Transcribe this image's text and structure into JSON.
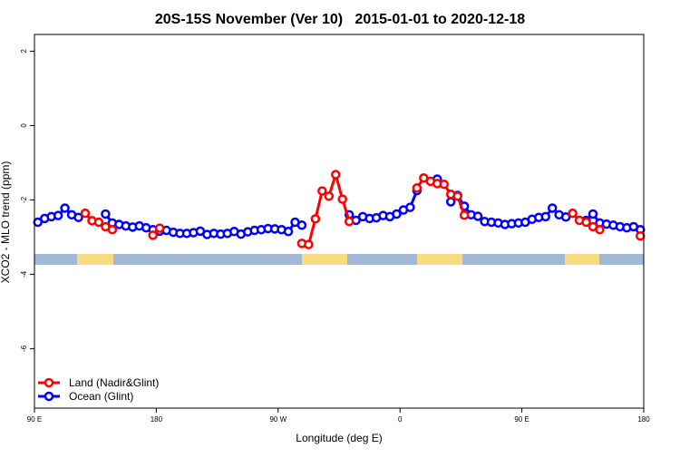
{
  "chart_data": {
    "type": "line",
    "title": "20S-15S November (Ver 10)   2015-01-01 to 2020-12-18",
    "x_label": "Longitude (deg E)",
    "y_label": "XCO2 - MLO trend (ppm)",
    "xlim": [
      90,
      540
    ],
    "xticks": [
      {
        "value": 90,
        "label": "90 E"
      },
      {
        "value": 180,
        "label": "180"
      },
      {
        "value": 270,
        "label": "90 W"
      },
      {
        "value": 360,
        "label": "0"
      },
      {
        "value": 450,
        "label": "90 E"
      },
      {
        "value": 540,
        "label": "180"
      }
    ],
    "ylim": [
      -7.6,
      2.45
    ],
    "yticks": [
      2,
      0,
      -2,
      -4,
      -6
    ],
    "legend": "bottom-left",
    "x": [
      92.5,
      97.5,
      102.5,
      107.5,
      112.5,
      117.5,
      122.5,
      127.5,
      132.5,
      137.5,
      142.5,
      147.5,
      152.5,
      157.5,
      162.5,
      167.5,
      172.5,
      177.5,
      182.5,
      187.5,
      192.5,
      197.5,
      202.5,
      207.5,
      212.5,
      217.5,
      222.5,
      227.5,
      232.5,
      237.5,
      242.5,
      247.5,
      252.5,
      257.5,
      262.5,
      267.5,
      272.5,
      277.5,
      282.5,
      287.5,
      292.5,
      297.5,
      302.5,
      307.5,
      312.5,
      317.5,
      322.5,
      327.5,
      332.5,
      337.5,
      342.5,
      347.5,
      352.5,
      357.5,
      362.5,
      367.5,
      372.5,
      377.5,
      382.5,
      387.5,
      392.5,
      397.5,
      402.5,
      407.5,
      412.5,
      417.5,
      422.5,
      427.5,
      432.5,
      437.5,
      442.5,
      447.5,
      452.5,
      457.5,
      462.5,
      467.5,
      472.5,
      477.5,
      482.5,
      487.5,
      492.5,
      497.5,
      502.5,
      507.5,
      512.5,
      517.5,
      522.5,
      527.5,
      532.5,
      537.5
    ],
    "series": [
      {
        "name": "Ocean (Glint)",
        "color": "#0000ff",
        "values": [
          -2.6,
          -2.5,
          -2.45,
          -2.42,
          -2.22,
          -2.4,
          -2.47,
          null,
          null,
          null,
          -2.38,
          -2.62,
          -2.66,
          -2.7,
          -2.73,
          -2.7,
          -2.75,
          -2.8,
          -2.84,
          -2.82,
          -2.87,
          -2.9,
          -2.9,
          -2.88,
          -2.84,
          -2.93,
          -2.9,
          -2.92,
          -2.9,
          -2.85,
          -2.92,
          -2.86,
          -2.82,
          -2.8,
          -2.77,
          -2.78,
          -2.8,
          -2.85,
          -2.6,
          -2.68,
          null,
          null,
          null,
          null,
          null,
          null,
          -2.4,
          -2.55,
          -2.45,
          -2.5,
          -2.48,
          -2.42,
          -2.45,
          -2.38,
          -2.27,
          -2.2,
          -1.75,
          null,
          null,
          -1.44,
          null,
          -2.05,
          -1.88,
          -2.17,
          -2.4,
          -2.44,
          -2.58,
          -2.6,
          -2.62,
          -2.66,
          -2.64,
          -2.62,
          -2.6,
          -2.52,
          -2.47,
          -2.45,
          -2.22,
          -2.4,
          -2.46,
          null,
          null,
          -2.55,
          -2.38,
          -2.62,
          -2.65,
          -2.68,
          -2.72,
          -2.75,
          -2.72,
          -2.8
        ]
      },
      {
        "name": "Land (Nadir&Glint)",
        "color": "#ff0000",
        "values": [
          null,
          null,
          null,
          null,
          null,
          null,
          null,
          -2.36,
          -2.56,
          -2.6,
          -2.72,
          -2.8,
          null,
          null,
          null,
          null,
          null,
          -2.95,
          -2.76,
          null,
          null,
          null,
          null,
          null,
          null,
          null,
          null,
          null,
          null,
          null,
          null,
          null,
          null,
          null,
          null,
          null,
          null,
          null,
          null,
          -3.17,
          -3.2,
          -2.51,
          -1.76,
          -1.9,
          -1.32,
          -1.98,
          -2.58,
          null,
          null,
          null,
          null,
          null,
          null,
          null,
          null,
          null,
          -1.68,
          -1.41,
          -1.5,
          -1.56,
          -1.58,
          -1.85,
          -1.9,
          -2.41,
          null,
          null,
          null,
          null,
          null,
          null,
          null,
          null,
          null,
          null,
          null,
          null,
          null,
          null,
          null,
          -2.36,
          -2.55,
          -2.6,
          -2.72,
          -2.8,
          null,
          null,
          null,
          null,
          null,
          -2.97
        ]
      }
    ]
  }
}
